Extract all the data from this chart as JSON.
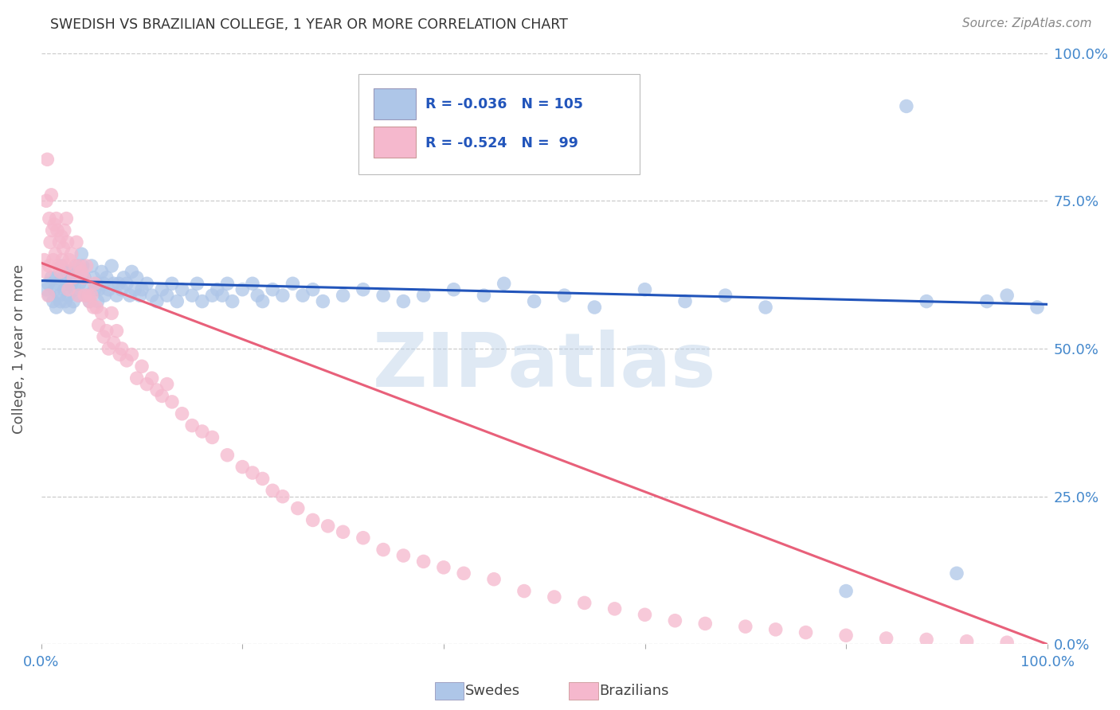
{
  "title": "SWEDISH VS BRAZILIAN COLLEGE, 1 YEAR OR MORE CORRELATION CHART",
  "source": "Source: ZipAtlas.com",
  "ylabel": "College, 1 year or more",
  "xlim": [
    0,
    1
  ],
  "ylim": [
    0,
    1
  ],
  "watermark": "ZIPatlas",
  "legend_r_blue": "-0.036",
  "legend_n_blue": "105",
  "legend_r_pink": "-0.524",
  "legend_n_pink": " 99",
  "blue_color": "#aec6e8",
  "pink_color": "#f5b8cd",
  "blue_line_color": "#2255bb",
  "pink_line_color": "#e8607a",
  "blue_label": "Swedes",
  "pink_label": "Brazilians",
  "title_color": "#333333",
  "source_color": "#888888",
  "axis_label_color": "#555555",
  "tick_color": "#4488cc",
  "grid_color": "#cccccc",
  "background_color": "#ffffff",
  "blue_trend_x0": 0.0,
  "blue_trend_y0": 0.615,
  "blue_trend_x1": 1.0,
  "blue_trend_y1": 0.575,
  "pink_trend_x0": 0.0,
  "pink_trend_y0": 0.645,
  "pink_trend_x1": 1.0,
  "pink_trend_y1": 0.0,
  "swedish_x": [
    0.005,
    0.007,
    0.008,
    0.01,
    0.012,
    0.013,
    0.015,
    0.015,
    0.016,
    0.018,
    0.019,
    0.02,
    0.022,
    0.023,
    0.024,
    0.025,
    0.026,
    0.027,
    0.028,
    0.03,
    0.03,
    0.032,
    0.033,
    0.035,
    0.036,
    0.037,
    0.038,
    0.04,
    0.041,
    0.043,
    0.045,
    0.046,
    0.048,
    0.05,
    0.052,
    0.053,
    0.055,
    0.056,
    0.057,
    0.06,
    0.062,
    0.063,
    0.065,
    0.067,
    0.07,
    0.072,
    0.075,
    0.077,
    0.08,
    0.082,
    0.085,
    0.088,
    0.09,
    0.093,
    0.095,
    0.098,
    0.1,
    0.105,
    0.11,
    0.115,
    0.12,
    0.125,
    0.13,
    0.135,
    0.14,
    0.15,
    0.155,
    0.16,
    0.17,
    0.175,
    0.18,
    0.185,
    0.19,
    0.2,
    0.21,
    0.215,
    0.22,
    0.23,
    0.24,
    0.25,
    0.26,
    0.27,
    0.28,
    0.3,
    0.32,
    0.34,
    0.36,
    0.38,
    0.41,
    0.44,
    0.46,
    0.49,
    0.52,
    0.55,
    0.6,
    0.64,
    0.68,
    0.72,
    0.8,
    0.86,
    0.88,
    0.91,
    0.94,
    0.96,
    0.99
  ],
  "swedish_y": [
    0.6,
    0.61,
    0.59,
    0.62,
    0.58,
    0.6,
    0.57,
    0.62,
    0.61,
    0.59,
    0.58,
    0.64,
    0.62,
    0.6,
    0.58,
    0.61,
    0.63,
    0.59,
    0.57,
    0.63,
    0.61,
    0.58,
    0.6,
    0.64,
    0.62,
    0.59,
    0.61,
    0.66,
    0.64,
    0.62,
    0.61,
    0.59,
    0.58,
    0.64,
    0.62,
    0.6,
    0.61,
    0.58,
    0.6,
    0.63,
    0.61,
    0.59,
    0.62,
    0.6,
    0.64,
    0.61,
    0.59,
    0.61,
    0.6,
    0.62,
    0.61,
    0.59,
    0.63,
    0.6,
    0.62,
    0.59,
    0.6,
    0.61,
    0.59,
    0.58,
    0.6,
    0.59,
    0.61,
    0.58,
    0.6,
    0.59,
    0.61,
    0.58,
    0.59,
    0.6,
    0.59,
    0.61,
    0.58,
    0.6,
    0.61,
    0.59,
    0.58,
    0.6,
    0.59,
    0.61,
    0.59,
    0.6,
    0.58,
    0.59,
    0.6,
    0.59,
    0.58,
    0.59,
    0.6,
    0.59,
    0.61,
    0.58,
    0.59,
    0.57,
    0.6,
    0.58,
    0.59,
    0.57,
    0.09,
    0.91,
    0.58,
    0.12,
    0.58,
    0.59,
    0.57
  ],
  "brazilian_x": [
    0.003,
    0.004,
    0.005,
    0.006,
    0.007,
    0.008,
    0.008,
    0.009,
    0.01,
    0.011,
    0.012,
    0.013,
    0.014,
    0.015,
    0.016,
    0.017,
    0.018,
    0.019,
    0.02,
    0.021,
    0.022,
    0.023,
    0.024,
    0.025,
    0.026,
    0.027,
    0.028,
    0.03,
    0.032,
    0.034,
    0.035,
    0.037,
    0.038,
    0.04,
    0.042,
    0.043,
    0.045,
    0.047,
    0.048,
    0.05,
    0.052,
    0.053,
    0.055,
    0.057,
    0.06,
    0.062,
    0.065,
    0.067,
    0.07,
    0.072,
    0.075,
    0.078,
    0.08,
    0.085,
    0.09,
    0.095,
    0.1,
    0.105,
    0.11,
    0.115,
    0.12,
    0.125,
    0.13,
    0.14,
    0.15,
    0.16,
    0.17,
    0.185,
    0.2,
    0.21,
    0.22,
    0.23,
    0.24,
    0.255,
    0.27,
    0.285,
    0.3,
    0.32,
    0.34,
    0.36,
    0.38,
    0.4,
    0.42,
    0.45,
    0.48,
    0.51,
    0.54,
    0.57,
    0.6,
    0.63,
    0.66,
    0.7,
    0.73,
    0.76,
    0.8,
    0.84,
    0.88,
    0.92,
    0.96
  ],
  "brazilian_y": [
    0.65,
    0.63,
    0.75,
    0.82,
    0.59,
    0.72,
    0.64,
    0.68,
    0.76,
    0.7,
    0.65,
    0.71,
    0.66,
    0.72,
    0.7,
    0.64,
    0.68,
    0.63,
    0.69,
    0.65,
    0.67,
    0.7,
    0.64,
    0.72,
    0.68,
    0.6,
    0.65,
    0.66,
    0.62,
    0.64,
    0.68,
    0.59,
    0.64,
    0.63,
    0.62,
    0.59,
    0.64,
    0.59,
    0.58,
    0.59,
    0.57,
    0.61,
    0.57,
    0.54,
    0.56,
    0.52,
    0.53,
    0.5,
    0.56,
    0.51,
    0.53,
    0.49,
    0.5,
    0.48,
    0.49,
    0.45,
    0.47,
    0.44,
    0.45,
    0.43,
    0.42,
    0.44,
    0.41,
    0.39,
    0.37,
    0.36,
    0.35,
    0.32,
    0.3,
    0.29,
    0.28,
    0.26,
    0.25,
    0.23,
    0.21,
    0.2,
    0.19,
    0.18,
    0.16,
    0.15,
    0.14,
    0.13,
    0.12,
    0.11,
    0.09,
    0.08,
    0.07,
    0.06,
    0.05,
    0.04,
    0.035,
    0.03,
    0.025,
    0.02,
    0.015,
    0.01,
    0.008,
    0.005,
    0.003
  ]
}
